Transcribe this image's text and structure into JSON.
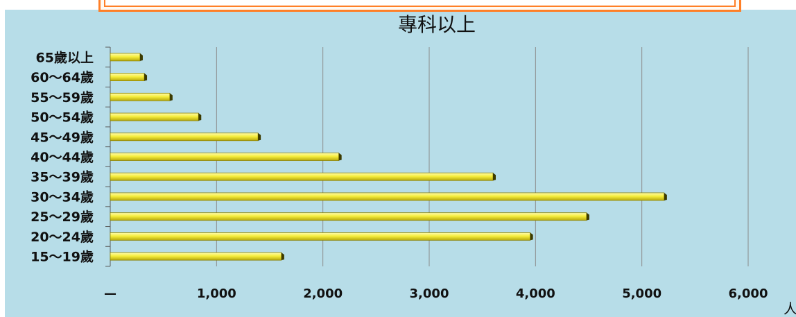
{
  "chart_data": {
    "type": "bar",
    "orientation": "horizontal",
    "title": "專科以上",
    "categories": [
      "65歲以上",
      "60～64歲",
      "55～59歲",
      "50～54歲",
      "45～49歲",
      "40～44歲",
      "35～39歲",
      "30～34歲",
      "25～29歲",
      "20～24歲",
      "15～19歲"
    ],
    "values": [
      280,
      320,
      560,
      830,
      1390,
      2150,
      3600,
      5210,
      4480,
      3950,
      1610
    ],
    "x_ticks": [
      0,
      1000,
      2000,
      3000,
      4000,
      5000,
      6000
    ],
    "x_tick_labels": [
      "—",
      "1,000",
      "2,000",
      "3,000",
      "4,000",
      "5,000",
      "6,000"
    ],
    "xlim": [
      0,
      6000
    ],
    "x_unit": "人",
    "grid": true,
    "colors": {
      "background": "#b7dde8",
      "bar_fill": "#f2e93a",
      "bar_edge": "#8c8200",
      "grid": "#8a8a8a",
      "banner_border": "#ff7f27"
    }
  }
}
